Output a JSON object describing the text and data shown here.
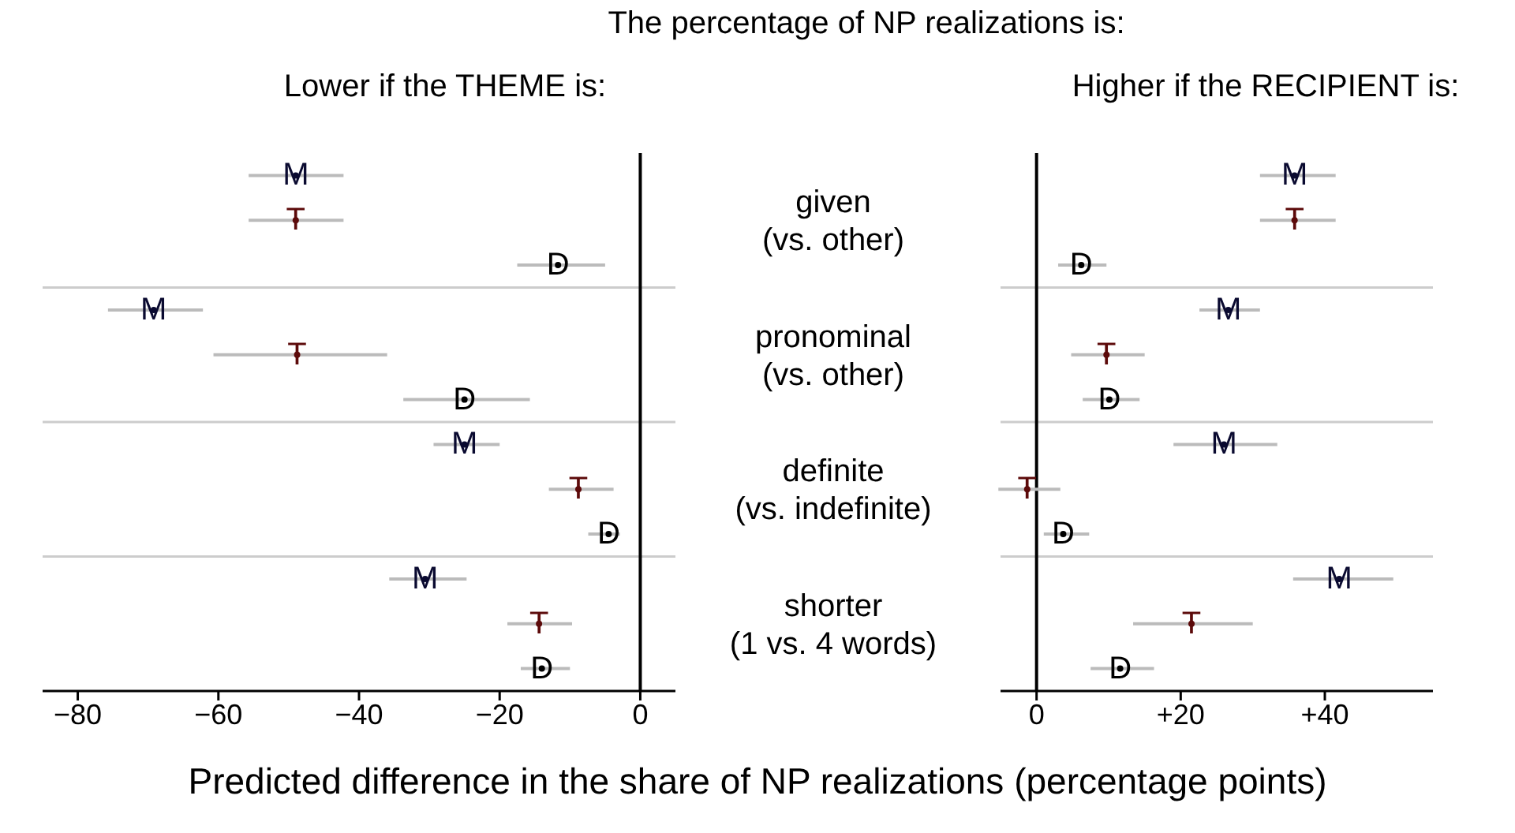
{
  "chart_data": [
    {
      "type": "scatter",
      "orientation": "horizontal",
      "title": "The percentage of NP realizations is:",
      "subtitle": "Lower if the THEME is:",
      "xlabel": "Predicted difference in the share of NP realizations (percentage points)",
      "categories": [
        null,
        "given (vs. other)",
        null,
        null,
        "pronominal (vs. other)",
        null,
        null,
        "definite (vs. indefinite)",
        null,
        null,
        "shorter (1 vs. 4 words)",
        null
      ],
      "series": [
        {
          "name": "M",
          "color": "#0a0a30",
          "values": [
            -49,
            null,
            null,
            -69.2,
            null,
            null,
            -25,
            null,
            null,
            -30.6,
            null,
            null
          ],
          "errors": [
            [
              -55.7,
              -42.2
            ],
            null,
            null,
            [
              -75.7,
              -62.2
            ],
            null,
            null,
            [
              -29.4,
              -20
            ],
            null,
            null,
            [
              -35.7,
              -24.7
            ],
            null,
            null
          ]
        },
        {
          "name": "T",
          "color": "#5c0a0a",
          "values": [
            null,
            -49,
            null,
            null,
            -48.8,
            null,
            null,
            -8.8,
            null,
            null,
            -14.4,
            null
          ],
          "errors": [
            null,
            [
              -55.7,
              -42.2
            ],
            null,
            null,
            [
              -60.7,
              -36
            ],
            null,
            null,
            [
              -13,
              -3.8
            ],
            null,
            null,
            [
              -18.9,
              -9.7
            ],
            null
          ]
        },
        {
          "name": "D",
          "color": "#000000",
          "values": [
            null,
            null,
            -11.7,
            null,
            null,
            -25,
            null,
            null,
            -4.5,
            null,
            null,
            -14
          ],
          "errors": [
            null,
            null,
            [
              -17.5,
              -5
            ],
            null,
            null,
            [
              -33.7,
              -15.7
            ],
            null,
            null,
            [
              -7.4,
              -2.9
            ],
            null,
            null,
            [
              -17,
              -10
            ]
          ]
        }
      ],
      "xlim": [
        -85,
        5
      ],
      "xticks": [
        {
          "value": -80,
          "label": "−80"
        },
        {
          "value": -60,
          "label": "−60"
        },
        {
          "value": -40,
          "label": "−40"
        },
        {
          "value": -20,
          "label": "−20"
        },
        0
      ],
      "grid": "y",
      "marker": "circle",
      "ref_lines": [
        {
          "axis": "x",
          "value": 0,
          "color": "#000000"
        }
      ]
    },
    {
      "type": "scatter",
      "orientation": "horizontal",
      "subtitle": "Higher if the RECIPIENT is:",
      "categories": [
        null,
        null,
        null,
        null,
        null,
        null,
        null,
        null,
        null,
        null,
        null,
        null
      ],
      "series": [
        {
          "name": "M",
          "color": "#0a0a30",
          "values": [
            35.8,
            null,
            null,
            26.6,
            null,
            null,
            26,
            null,
            null,
            42,
            null,
            null
          ],
          "errors": [
            [
              31,
              41.5
            ],
            null,
            null,
            [
              22.6,
              31
            ],
            null,
            null,
            [
              19,
              33.4
            ],
            null,
            null,
            [
              35.6,
              49.5
            ],
            null,
            null
          ]
        },
        {
          "name": "T",
          "color": "#5c0a0a",
          "values": [
            null,
            35.8,
            null,
            null,
            9.7,
            null,
            null,
            -1.3,
            null,
            null,
            21.5,
            null
          ],
          "errors": [
            null,
            [
              31,
              41.5
            ],
            null,
            null,
            [
              4.8,
              15
            ],
            null,
            null,
            [
              -5.3,
              3.3
            ],
            null,
            null,
            [
              13.4,
              30
            ],
            null
          ]
        },
        {
          "name": "D",
          "color": "#000000",
          "values": [
            null,
            null,
            6.2,
            null,
            null,
            10.1,
            null,
            null,
            3.7,
            null,
            null,
            11.6
          ],
          "errors": [
            null,
            null,
            [
              3,
              9.7
            ],
            null,
            null,
            [
              6.4,
              14.3
            ],
            null,
            null,
            [
              1,
              7.3
            ],
            null,
            null,
            [
              7.5,
              16.3
            ]
          ]
        }
      ],
      "xlim": [
        -5,
        55
      ],
      "xticks": [
        0,
        {
          "value": 20,
          "label": "+20"
        },
        {
          "value": 40,
          "label": "+40"
        }
      ],
      "grid": "y",
      "marker": "circle",
      "ref_lines": [
        {
          "axis": "x",
          "value": 0,
          "color": "#000000"
        }
      ],
      "tick_labels": "x"
    }
  ]
}
